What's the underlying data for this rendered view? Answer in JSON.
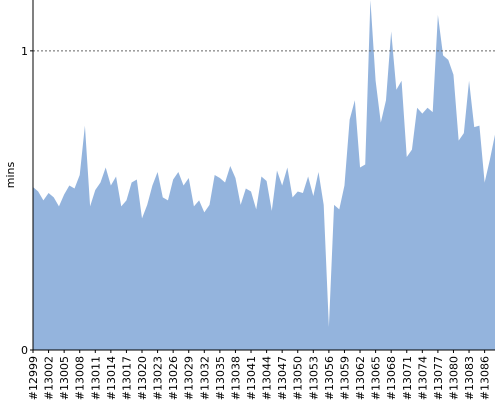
{
  "chart_data": {
    "type": "area",
    "y_label": "mins",
    "color": "#94b4dd",
    "categories": [
      "#12999",
      null,
      null,
      "#13002",
      null,
      null,
      "#13005",
      null,
      null,
      "#13008",
      null,
      null,
      "#13011",
      null,
      null,
      "#13014",
      null,
      null,
      "#13017",
      null,
      null,
      "#13020",
      null,
      null,
      "#13023",
      null,
      null,
      "#13026",
      null,
      null,
      "#13029",
      null,
      null,
      "#13032",
      null,
      null,
      "#13035",
      null,
      null,
      "#13038",
      null,
      null,
      "#13041",
      null,
      null,
      "#13044",
      null,
      null,
      "#13047",
      null,
      null,
      "#13050",
      null,
      null,
      "#13053",
      null,
      null,
      "#13056",
      null,
      null,
      "#13059",
      null,
      null,
      "#13062",
      null,
      null,
      "#13065",
      null,
      null,
      "#13068",
      null,
      null,
      "#13071",
      null,
      null,
      "#13074",
      null,
      null,
      "#13077",
      null,
      null,
      "#13080",
      null,
      null,
      "#13083",
      null,
      null,
      "#13086",
      null,
      null
    ],
    "values": [
      0.545,
      0.53,
      0.5,
      0.525,
      0.51,
      0.48,
      0.52,
      0.55,
      0.54,
      0.585,
      0.75,
      0.48,
      0.535,
      0.56,
      0.61,
      0.55,
      0.58,
      0.48,
      0.5,
      0.56,
      0.57,
      0.44,
      0.485,
      0.55,
      0.595,
      0.51,
      0.5,
      0.57,
      0.595,
      0.55,
      0.575,
      0.48,
      0.5,
      0.46,
      0.485,
      0.585,
      0.575,
      0.56,
      0.615,
      0.575,
      0.485,
      0.54,
      0.53,
      0.47,
      0.58,
      0.565,
      0.465,
      0.6,
      0.55,
      0.61,
      0.51,
      0.53,
      0.525,
      0.58,
      0.515,
      0.595,
      0.485,
      0.077,
      0.485,
      0.47,
      0.55,
      0.77,
      0.835,
      0.61,
      0.62,
      1.17,
      0.9,
      0.76,
      0.835,
      1.065,
      0.87,
      0.9,
      0.645,
      0.67,
      0.81,
      0.79,
      0.81,
      0.795,
      1.12,
      0.985,
      0.97,
      0.92,
      0.7,
      0.725,
      0.9,
      0.745,
      0.75,
      0.56,
      0.635,
      0.72
    ],
    "ylim": [
      0,
      1.17
    ],
    "yticks": [
      0,
      1
    ],
    "grid": true
  }
}
